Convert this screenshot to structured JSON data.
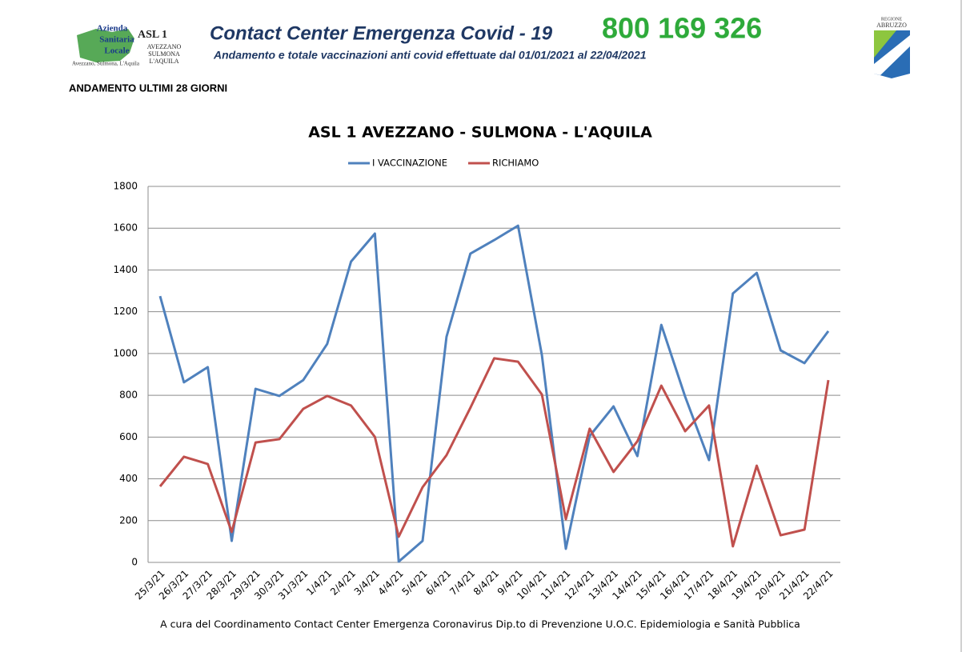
{
  "header": {
    "logo_line1": "Azienda",
    "logo_line2": "Sanitaria",
    "logo_line3": "Locale",
    "logo_caption": "Avezzano, Sulmona, L'Aquila",
    "asl": "ASL 1",
    "asl_sub1": "AVEZZANO",
    "asl_sub2": "SULMONA",
    "asl_sub3": "L'AQUILA",
    "title": "Contact Center Emergenza Covid - 19",
    "phone": "800 169 326",
    "subtitle": "Andamento e totale vaccinazioni anti covid effettuate dal 01/01/2021 al 22/04/2021",
    "region_line1": "REGIONE",
    "region_line2": "ABRUZZO",
    "section": "ANDAMENTO ULTIMI 28 GIORNI"
  },
  "chart_data": {
    "type": "line",
    "title": "ASL 1 AVEZZANO - SULMONA - L'AQUILA",
    "categories": [
      "25/3/21",
      "26/3/21",
      "27/3/21",
      "28/3/21",
      "29/3/21",
      "30/3/21",
      "31/3/21",
      "1/4/21",
      "2/4/21",
      "3/4/21",
      "4/4/21",
      "5/4/21",
      "6/4/21",
      "7/4/21",
      "8/4/21",
      "9/4/21",
      "10/4/21",
      "11/4/21",
      "12/4/21",
      "13/4/21",
      "14/4/21",
      "15/4/21",
      "16/4/21",
      "17/4/21",
      "18/4/21",
      "19/4/21",
      "20/4/21",
      "21/4/21",
      "22/4/21"
    ],
    "series": [
      {
        "name": "I VACCINAZIONE",
        "color": "#4f81bd",
        "values": [
          1275,
          862,
          935,
          103,
          831,
          797,
          873,
          1046,
          1440,
          1574,
          4,
          103,
          1080,
          1478,
          1543,
          1612,
          992,
          65,
          605,
          747,
          509,
          1137,
          793,
          490,
          1287,
          1386,
          1015,
          954,
          1107
        ]
      },
      {
        "name": "RICHIAMO",
        "color": "#c0504d",
        "values": [
          364,
          506,
          471,
          146,
          574,
          590,
          735,
          797,
          751,
          601,
          123,
          360,
          513,
          740,
          977,
          961,
          804,
          207,
          640,
          433,
          580,
          846,
          628,
          751,
          77,
          463,
          130,
          157,
          873
        ]
      }
    ],
    "ylim": [
      0,
      1800
    ],
    "yticks": [
      0,
      200,
      400,
      600,
      800,
      1000,
      1200,
      1400,
      1600,
      1800
    ],
    "grid": true,
    "legend": "top"
  },
  "footer": "A cura del Coordinamento Contact Center Emergenza Coronavirus  Dip.to di Prevenzione U.O.C. Epidemiologia e Sanità Pubblica"
}
